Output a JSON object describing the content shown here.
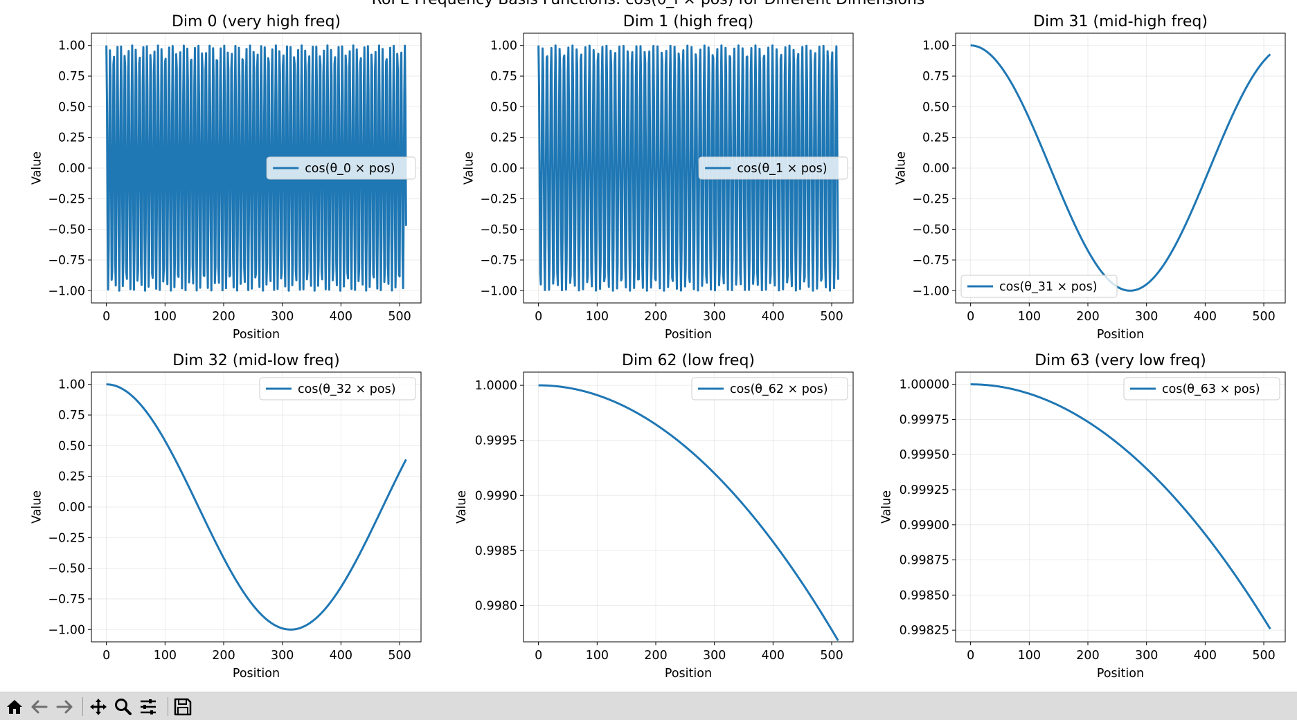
{
  "figure": {
    "suptitle": "RoPE Frequency Basis Functions: cos(θ_i × pos) for Different Dimensions"
  },
  "toolbar": {
    "buttons": [
      {
        "name": "home-button",
        "icon": "home-icon"
      },
      {
        "name": "back-button",
        "icon": "arrow-left-icon"
      },
      {
        "name": "forward-button",
        "icon": "arrow-right-icon"
      },
      {
        "name": "pan-button",
        "icon": "move-icon"
      },
      {
        "name": "zoom-button",
        "icon": "magnifier-icon"
      },
      {
        "name": "configure-subplots-button",
        "icon": "sliders-icon"
      },
      {
        "name": "save-button",
        "icon": "floppy-disk-icon"
      }
    ]
  },
  "chart_data": [
    {
      "type": "line",
      "title": "Dim 0 (very high freq)",
      "xlabel": "Position",
      "ylabel": "Value",
      "legend": "cos(θ_0 × pos)",
      "legend_loc": "center-right",
      "color": "#1f77b4",
      "function": "cos(theta * pos)",
      "theta": 1.0,
      "x_range": [
        0,
        511
      ],
      "xlim": [
        -25.55,
        536.55
      ],
      "ylim": [
        -1.1,
        1.1
      ],
      "xticks": [
        0,
        100,
        200,
        300,
        400,
        500
      ],
      "xtick_labels": [
        "0",
        "100",
        "200",
        "300",
        "400",
        "500"
      ],
      "yticks": [
        -1.0,
        -0.75,
        -0.5,
        -0.25,
        0.0,
        0.25,
        0.5,
        0.75,
        1.0
      ],
      "ytick_labels": [
        "−1.00",
        "−0.75",
        "−0.50",
        "−0.25",
        "0.00",
        "0.25",
        "0.50",
        "0.75",
        "1.00"
      ],
      "grid": true
    },
    {
      "type": "line",
      "title": "Dim 1 (high freq)",
      "xlabel": "Position",
      "ylabel": "Value",
      "legend": "cos(θ_1 × pos)",
      "legend_loc": "center-right",
      "color": "#1f77b4",
      "function": "cos(theta * pos)",
      "theta": 0.8660254,
      "x_range": [
        0,
        511
      ],
      "xlim": [
        -25.55,
        536.55
      ],
      "ylim": [
        -1.1,
        1.1
      ],
      "xticks": [
        0,
        100,
        200,
        300,
        400,
        500
      ],
      "xtick_labels": [
        "0",
        "100",
        "200",
        "300",
        "400",
        "500"
      ],
      "yticks": [
        -1.0,
        -0.75,
        -0.5,
        -0.25,
        0.0,
        0.25,
        0.5,
        0.75,
        1.0
      ],
      "ytick_labels": [
        "−1.00",
        "−0.75",
        "−0.50",
        "−0.25",
        "0.00",
        "0.25",
        "0.50",
        "0.75",
        "1.00"
      ],
      "grid": true
    },
    {
      "type": "line",
      "title": "Dim 31 (mid-high freq)",
      "xlabel": "Position",
      "ylabel": "Value",
      "legend": "cos(θ_31 × pos)",
      "legend_loc": "lower-left",
      "color": "#1f77b4",
      "function": "cos(theta * pos)",
      "theta": 0.011548,
      "x_range": [
        0,
        511
      ],
      "xlim": [
        -25.55,
        536.55
      ],
      "ylim": [
        -1.1,
        1.1
      ],
      "xticks": [
        0,
        100,
        200,
        300,
        400,
        500
      ],
      "xtick_labels": [
        "0",
        "100",
        "200",
        "300",
        "400",
        "500"
      ],
      "yticks": [
        -1.0,
        -0.75,
        -0.5,
        -0.25,
        0.0,
        0.25,
        0.5,
        0.75,
        1.0
      ],
      "ytick_labels": [
        "−1.00",
        "−0.75",
        "−0.50",
        "−0.25",
        "0.00",
        "0.25",
        "0.50",
        "0.75",
        "1.00"
      ],
      "grid": true
    },
    {
      "type": "line",
      "title": "Dim 32 (mid-low freq)",
      "xlabel": "Position",
      "ylabel": "Value",
      "legend": "cos(θ_32 × pos)",
      "legend_loc": "upper-right",
      "color": "#1f77b4",
      "function": "cos(theta * pos)",
      "theta": 0.01,
      "x_range": [
        0,
        511
      ],
      "xlim": [
        -25.55,
        536.55
      ],
      "ylim": [
        -1.1,
        1.1
      ],
      "xticks": [
        0,
        100,
        200,
        300,
        400,
        500
      ],
      "xtick_labels": [
        "0",
        "100",
        "200",
        "300",
        "400",
        "500"
      ],
      "yticks": [
        -1.0,
        -0.75,
        -0.5,
        -0.25,
        0.0,
        0.25,
        0.5,
        0.75,
        1.0
      ],
      "ytick_labels": [
        "−1.00",
        "−0.75",
        "−0.50",
        "−0.25",
        "0.00",
        "0.25",
        "0.50",
        "0.75",
        "1.00"
      ],
      "grid": true
    },
    {
      "type": "line",
      "title": "Dim 62 (low freq)",
      "xlabel": "Position",
      "ylabel": "Value",
      "legend": "cos(θ_62 × pos)",
      "legend_loc": "upper-right",
      "color": "#1f77b4",
      "function": "cos(theta * pos)",
      "theta": 0.0001333,
      "x_range": [
        0,
        511
      ],
      "xlim": [
        -25.55,
        536.55
      ],
      "ylim": [
        0.99767,
        1.00012
      ],
      "xticks": [
        0,
        100,
        200,
        300,
        400,
        500
      ],
      "xtick_labels": [
        "0",
        "100",
        "200",
        "300",
        "400",
        "500"
      ],
      "yticks": [
        0.998,
        0.9985,
        0.999,
        0.9995,
        1.0
      ],
      "ytick_labels": [
        "0.9980",
        "0.9985",
        "0.9990",
        "0.9995",
        "1.0000"
      ],
      "grid": true
    },
    {
      "type": "line",
      "title": "Dim 63 (very low freq)",
      "xlabel": "Position",
      "ylabel": "Value",
      "legend": "cos(θ_63 × pos)",
      "legend_loc": "upper-right",
      "color": "#1f77b4",
      "function": "cos(theta * pos)",
      "theta": 0.0001155,
      "x_range": [
        0,
        511
      ],
      "xlim": [
        -25.55,
        536.55
      ],
      "ylim": [
        0.998167,
        1.000087
      ],
      "xticks": [
        0,
        100,
        200,
        300,
        400,
        500
      ],
      "xtick_labels": [
        "0",
        "100",
        "200",
        "300",
        "400",
        "500"
      ],
      "yticks": [
        0.99825,
        0.9985,
        0.99875,
        0.999,
        0.99925,
        0.9995,
        0.99975,
        1.0
      ],
      "ytick_labels": [
        "0.99825",
        "0.99850",
        "0.99875",
        "0.99900",
        "0.99925",
        "0.99950",
        "0.99975",
        "1.00000"
      ],
      "grid": true
    }
  ]
}
